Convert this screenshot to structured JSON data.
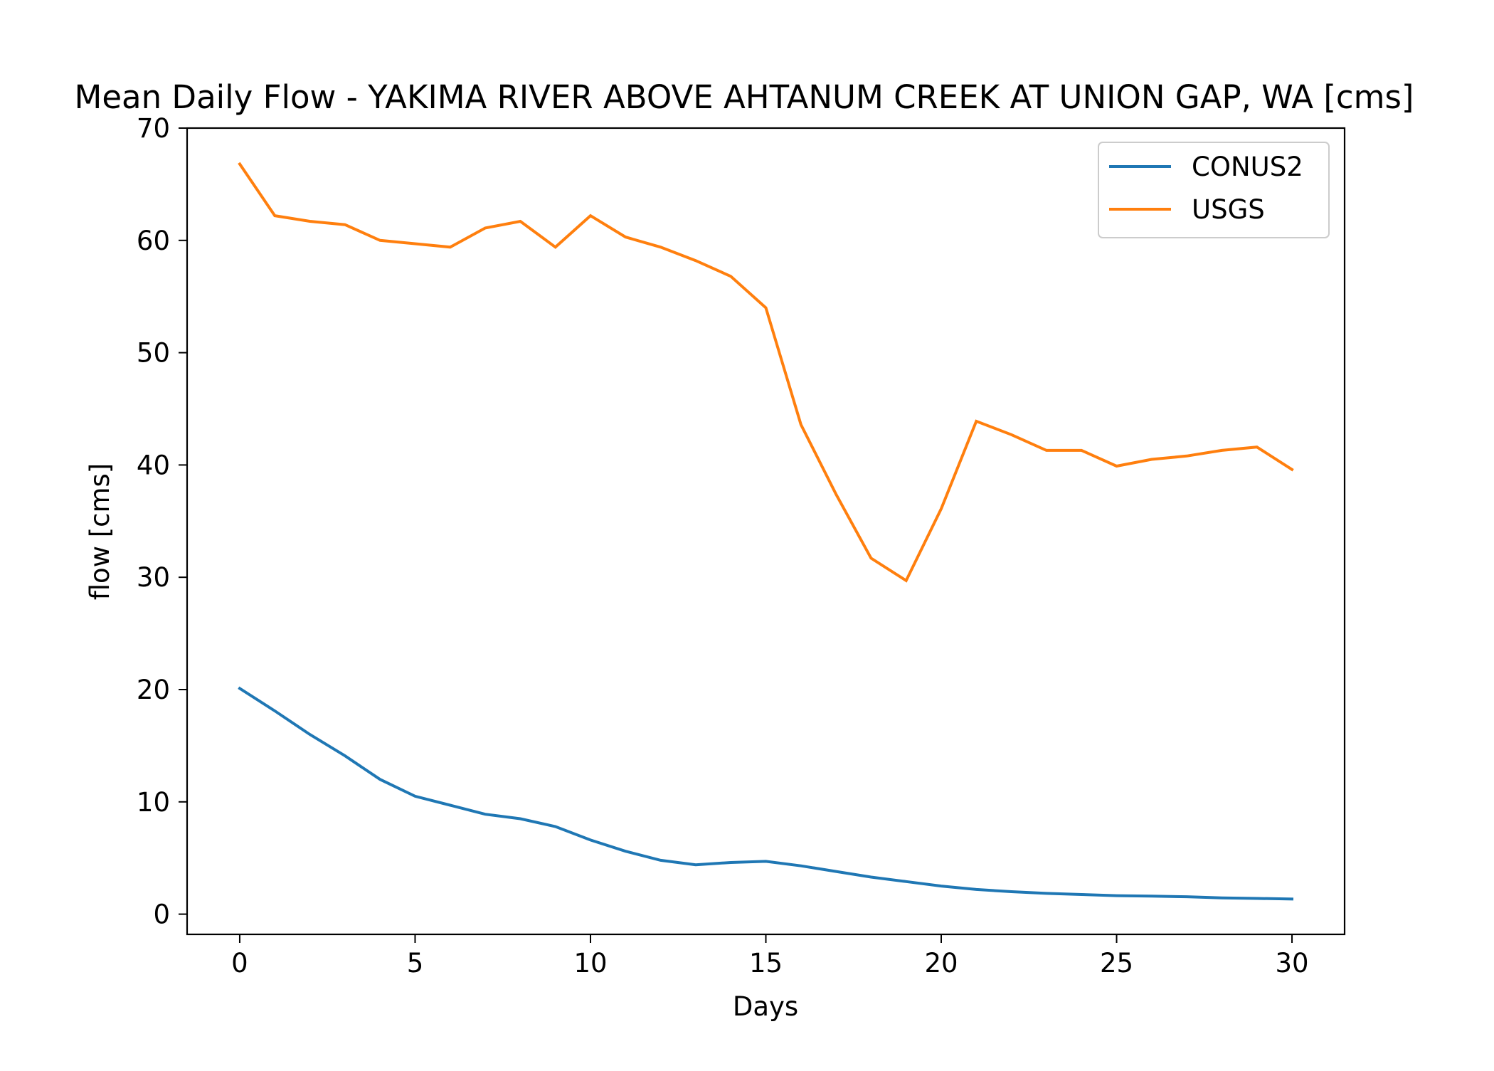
{
  "chart_data": {
    "type": "line",
    "title": "Mean Daily Flow - YAKIMA RIVER ABOVE AHTANUM CREEK AT UNION GAP, WA [cms]",
    "xlabel": "Days",
    "ylabel": "flow [cms]",
    "xlim": [
      -1.5,
      31.5
    ],
    "ylim": [
      -1.8,
      70
    ],
    "xticks": [
      0,
      5,
      10,
      15,
      20,
      25,
      30
    ],
    "yticks": [
      0,
      10,
      20,
      30,
      40,
      50,
      60,
      70
    ],
    "grid": false,
    "legend_position": "top-right",
    "x": [
      0,
      1,
      2,
      3,
      4,
      5,
      6,
      7,
      8,
      9,
      10,
      11,
      12,
      13,
      14,
      15,
      16,
      17,
      18,
      19,
      20,
      21,
      22,
      23,
      24,
      25,
      26,
      27,
      28,
      29,
      30
    ],
    "series": [
      {
        "name": "CONUS2",
        "color": "#1f77b4",
        "values": [
          20.1,
          18.1,
          16.0,
          14.1,
          12.0,
          10.5,
          9.7,
          8.9,
          8.5,
          7.8,
          6.6,
          5.6,
          4.8,
          4.4,
          4.6,
          4.7,
          4.3,
          3.8,
          3.3,
          2.9,
          2.5,
          2.2,
          2.0,
          1.85,
          1.75,
          1.65,
          1.6,
          1.55,
          1.45,
          1.4,
          1.35
        ]
      },
      {
        "name": "USGS",
        "color": "#ff7f0e",
        "values": [
          66.8,
          62.2,
          61.7,
          61.4,
          60.0,
          59.7,
          59.4,
          61.1,
          61.7,
          59.4,
          62.2,
          60.3,
          59.4,
          58.2,
          56.8,
          54.0,
          43.6,
          37.4,
          31.7,
          29.7,
          36.1,
          43.9,
          42.7,
          41.3,
          41.3,
          39.9,
          40.5,
          40.8,
          41.3,
          41.6,
          39.6
        ]
      }
    ]
  }
}
